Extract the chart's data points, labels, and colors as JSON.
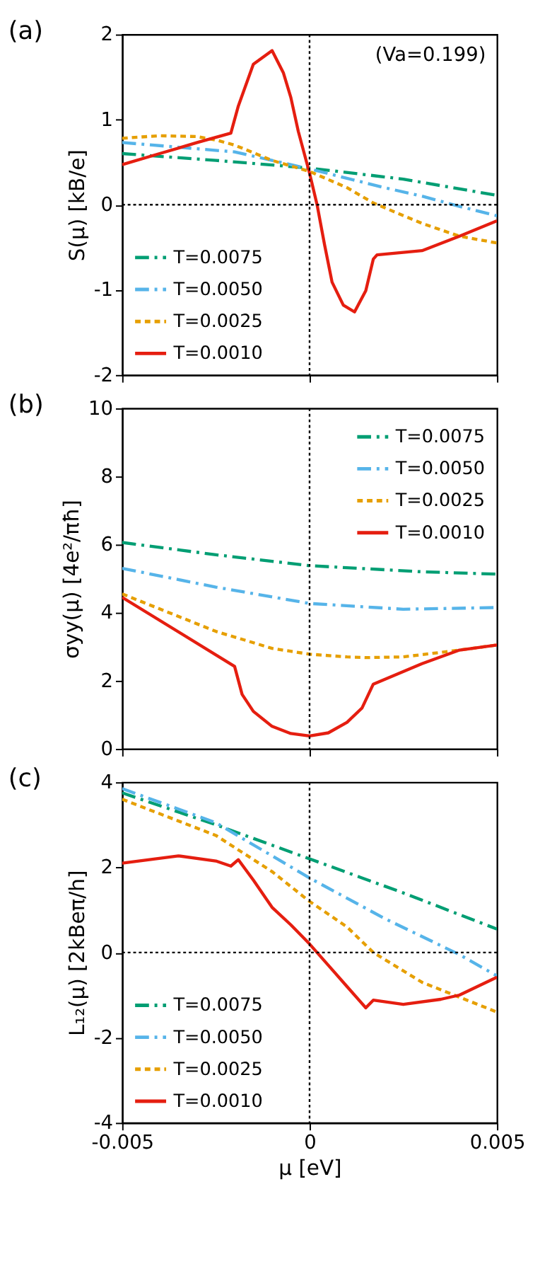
{
  "chart_data": [
    {
      "type": "line",
      "title": "(a)",
      "ylabel": "S(μ) [kB/e]",
      "annotations": [
        "(Va=0.199)"
      ],
      "xlim": [
        -0.005,
        0.005
      ],
      "xticks": [
        -0.005,
        0,
        0.005
      ],
      "ylim": [
        -2,
        2
      ],
      "yticks": [
        -2,
        -1,
        0,
        1,
        2
      ],
      "tick_labels": "y",
      "grid": false,
      "legend": "bottom left",
      "ref_lines": [
        {
          "axis": "x",
          "value": 0,
          "color": "#000000",
          "line_style": "dotted"
        },
        {
          "axis": "y",
          "value": 0,
          "color": "#000000",
          "line_style": "dotted"
        }
      ],
      "series": [
        {
          "name": "T=0.0075",
          "color": "#009e73",
          "line_style": "dashed",
          "x": [
            -0.005,
            -0.0025,
            0,
            0.0025,
            0.005
          ],
          "values": [
            0.6,
            0.52,
            0.43,
            0.3,
            0.11
          ]
        },
        {
          "name": "T=0.0050",
          "color": "#56b4e9",
          "line_style": "dashed",
          "x": [
            -0.005,
            -0.002,
            0,
            0.002,
            0.003,
            0.004,
            0.005
          ],
          "values": [
            0.73,
            0.62,
            0.42,
            0.2,
            0.1,
            -0.02,
            -0.13
          ]
        },
        {
          "name": "T=0.0025",
          "color": "#e69f00",
          "line_style": "dotted",
          "x": [
            -0.005,
            -0.004,
            -0.003,
            -0.0025,
            -0.002,
            -0.001,
            0,
            0.001,
            0.0017,
            0.003,
            0.004,
            0.005
          ],
          "values": [
            0.78,
            0.81,
            0.8,
            0.76,
            0.7,
            0.52,
            0.39,
            0.2,
            0.02,
            -0.22,
            -0.37,
            -0.45
          ]
        },
        {
          "name": "T=0.0010",
          "color": "#e51e10",
          "line_style": "solid",
          "x": [
            -0.005,
            -0.004,
            -0.003,
            -0.0021,
            -0.0019,
            -0.0015,
            -0.001,
            -0.0007,
            -0.0005,
            -0.0003,
            0,
            0.0002,
            0.0004,
            0.0006,
            0.0009,
            0.0012,
            0.0015,
            0.0017,
            0.0018,
            0.003,
            0.004,
            0.005
          ],
          "values": [
            0.47,
            0.6,
            0.73,
            0.84,
            1.16,
            1.65,
            1.81,
            1.55,
            1.26,
            0.86,
            0.37,
            0,
            -0.47,
            -0.91,
            -1.18,
            -1.26,
            -1.01,
            -0.64,
            -0.59,
            -0.54,
            -0.37,
            -0.19
          ]
        }
      ]
    },
    {
      "type": "line",
      "title": "(b)",
      "ylabel": "σyy(μ) [4e²/πħ]",
      "xlim": [
        -0.005,
        0.005
      ],
      "xticks": [
        -0.005,
        0,
        0.005
      ],
      "ylim": [
        0,
        10
      ],
      "yticks": [
        0,
        2,
        4,
        6,
        8,
        10
      ],
      "tick_labels": "y",
      "grid": false,
      "legend": "top right",
      "ref_lines": [
        {
          "axis": "x",
          "value": 0,
          "color": "#000000",
          "line_style": "dotted"
        }
      ],
      "series": [
        {
          "name": "T=0.0075",
          "color": "#009e73",
          "line_style": "dashed",
          "x": [
            -0.005,
            -0.0025,
            0,
            0.003,
            0.005
          ],
          "values": [
            6.06,
            5.7,
            5.38,
            5.2,
            5.13
          ]
        },
        {
          "name": "T=0.0050",
          "color": "#56b4e9",
          "line_style": "dashed",
          "x": [
            -0.005,
            -0.0025,
            0,
            0.0025,
            0.005
          ],
          "values": [
            5.3,
            4.75,
            4.27,
            4.1,
            4.15
          ]
        },
        {
          "name": "T=0.0025",
          "color": "#e69f00",
          "line_style": "dotted",
          "x": [
            -0.005,
            -0.0025,
            -0.001,
            0,
            0.001,
            0.0015,
            0.0025,
            0.004,
            0.005
          ],
          "values": [
            4.55,
            3.45,
            2.95,
            2.78,
            2.7,
            2.68,
            2.7,
            2.9,
            3.05
          ]
        },
        {
          "name": "T=0.0010",
          "color": "#e51e10",
          "line_style": "solid",
          "x": [
            -0.005,
            -0.002,
            -0.0018,
            -0.0015,
            -0.001,
            -0.0005,
            0,
            0.0005,
            0.001,
            0.0014,
            0.0017,
            0.003,
            0.004,
            0.005
          ],
          "values": [
            4.45,
            2.42,
            1.6,
            1.1,
            0.66,
            0.45,
            0.38,
            0.47,
            0.78,
            1.2,
            1.9,
            2.5,
            2.9,
            3.05
          ]
        }
      ]
    },
    {
      "type": "line",
      "title": "(c)",
      "xlabel": "μ [eV]",
      "ylabel": "L₁₂(μ) [2kBeπ/h]",
      "xlim": [
        -0.005,
        0.005
      ],
      "xticks": [
        -0.005,
        0,
        0.005
      ],
      "ylim": [
        -4,
        4
      ],
      "yticks": [
        -4,
        -2,
        0,
        2,
        4
      ],
      "grid": false,
      "legend": "bottom left",
      "ref_lines": [
        {
          "axis": "x",
          "value": 0,
          "color": "#000000",
          "line_style": "dotted"
        },
        {
          "axis": "y",
          "value": 0,
          "color": "#000000",
          "line_style": "dotted"
        }
      ],
      "series": [
        {
          "name": "T=0.0075",
          "color": "#009e73",
          "line_style": "dashed",
          "x": [
            -0.005,
            -0.0025,
            0,
            0.0025,
            0.005
          ],
          "values": [
            3.75,
            3.0,
            2.2,
            1.4,
            0.55
          ]
        },
        {
          "name": "T=0.0050",
          "color": "#56b4e9",
          "line_style": "dashed",
          "x": [
            -0.005,
            -0.0025,
            0,
            0.002,
            0.004,
            0.005
          ],
          "values": [
            3.85,
            3.05,
            1.75,
            0.8,
            -0.05,
            -0.55
          ]
        },
        {
          "name": "T=0.0025",
          "color": "#e69f00",
          "line_style": "dotted",
          "x": [
            -0.005,
            -0.0025,
            -0.001,
            0,
            0.001,
            0.0017,
            0.003,
            0.004,
            0.005
          ],
          "values": [
            3.6,
            2.75,
            1.9,
            1.2,
            0.6,
            0.0,
            -0.7,
            -1.05,
            -1.4
          ]
        },
        {
          "name": "T=0.0010",
          "color": "#e51e10",
          "line_style": "solid",
          "x": [
            -0.005,
            -0.0035,
            -0.0025,
            -0.0021,
            -0.0019,
            -0.0015,
            -0.001,
            -0.0005,
            0,
            0.0005,
            0.001,
            0.0015,
            0.0017,
            0.0025,
            0.0035,
            0.004,
            0.005
          ],
          "values": [
            2.1,
            2.27,
            2.15,
            2.03,
            2.18,
            1.7,
            1.06,
            0.65,
            0.2,
            -0.3,
            -0.8,
            -1.3,
            -1.12,
            -1.22,
            -1.1,
            -1.0,
            -0.58
          ]
        }
      ]
    }
  ]
}
